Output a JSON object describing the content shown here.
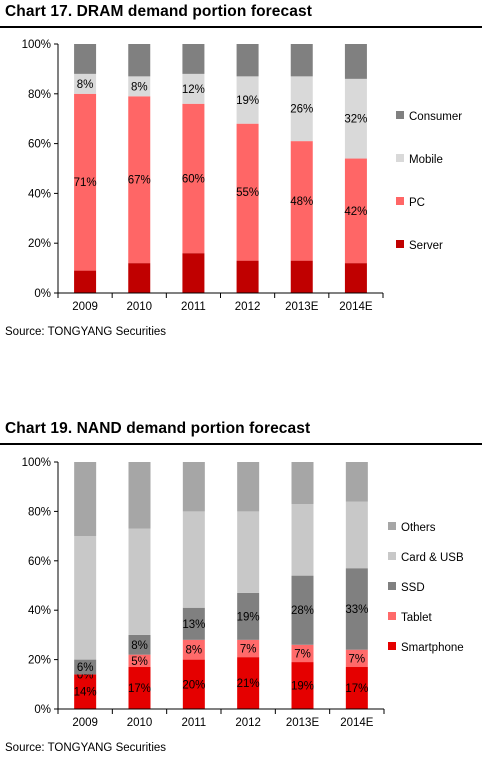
{
  "charts": {
    "dram": {
      "title": "Chart 17. DRAM demand portion forecast",
      "source": "Source: TONGYANG Securities"
    },
    "nand": {
      "title": "Chart 19. NAND demand portion forecast",
      "source": "Source: TONGYANG Securities"
    }
  },
  "colors": {
    "Server": "#c00000",
    "PC": "#ff6666",
    "Mobile": "#d9d9d9",
    "Consumer": "#808080",
    "Smartphone": "#e50000",
    "Tablet": "#ff6a6a",
    "SSD": "#808080",
    "Card & USB": "#c8c8c8",
    "Others": "#a6a6a6"
  },
  "chart_data": [
    {
      "type": "bar",
      "stacked": true,
      "title": "Chart 17. DRAM demand portion forecast",
      "categories": [
        "2009",
        "2010",
        "2011",
        "2012",
        "2013E",
        "2014E"
      ],
      "ylim": [
        0,
        100
      ],
      "yticks": [
        "0%",
        "20%",
        "40%",
        "60%",
        "80%",
        "100%"
      ],
      "grid": false,
      "legend_position": "right",
      "series": [
        {
          "name": "Server",
          "values": [
            9,
            12,
            16,
            13,
            13,
            12
          ],
          "labels": [
            "",
            "",
            "",
            "",
            "",
            ""
          ]
        },
        {
          "name": "PC",
          "values": [
            71,
            67,
            60,
            55,
            48,
            42
          ],
          "labels": [
            "71%",
            "67%",
            "60%",
            "55%",
            "48%",
            "42%"
          ]
        },
        {
          "name": "Mobile",
          "values": [
            8,
            8,
            12,
            19,
            26,
            32
          ],
          "labels": [
            "8%",
            "8%",
            "12%",
            "19%",
            "26%",
            "32%"
          ]
        },
        {
          "name": "Consumer",
          "values": [
            12,
            13,
            12,
            13,
            13,
            14
          ],
          "labels": [
            "",
            "",
            "",
            "",
            "",
            ""
          ]
        }
      ]
    },
    {
      "type": "bar",
      "stacked": true,
      "title": "Chart 19. NAND demand portion forecast",
      "categories": [
        "2009",
        "2010",
        "2011",
        "2012",
        "2013E",
        "2014E"
      ],
      "ylim": [
        0,
        100
      ],
      "yticks": [
        "0%",
        "20%",
        "40%",
        "60%",
        "80%",
        "100%"
      ],
      "grid": false,
      "legend_position": "right",
      "series": [
        {
          "name": "Smartphone",
          "values": [
            14,
            17,
            20,
            21,
            19,
            17
          ],
          "labels": [
            "14%",
            "17%",
            "20%",
            "21%",
            "19%",
            "17%"
          ]
        },
        {
          "name": "Tablet",
          "values": [
            0,
            5,
            8,
            7,
            7,
            7
          ],
          "labels": [
            "0%",
            "5%",
            "8%",
            "7%",
            "7%",
            "7%"
          ]
        },
        {
          "name": "SSD",
          "values": [
            6,
            8,
            13,
            19,
            28,
            33
          ],
          "labels": [
            "6%",
            "8%",
            "13%",
            "19%",
            "28%",
            "33%"
          ]
        },
        {
          "name": "Card & USB",
          "values": [
            50,
            43,
            39,
            33,
            29,
            27
          ],
          "labels": [
            "",
            "",
            "",
            "",
            "",
            ""
          ]
        },
        {
          "name": "Others",
          "values": [
            30,
            27,
            20,
            20,
            17,
            16
          ],
          "labels": [
            "",
            "",
            "",
            "",
            "",
            ""
          ]
        }
      ]
    }
  ]
}
